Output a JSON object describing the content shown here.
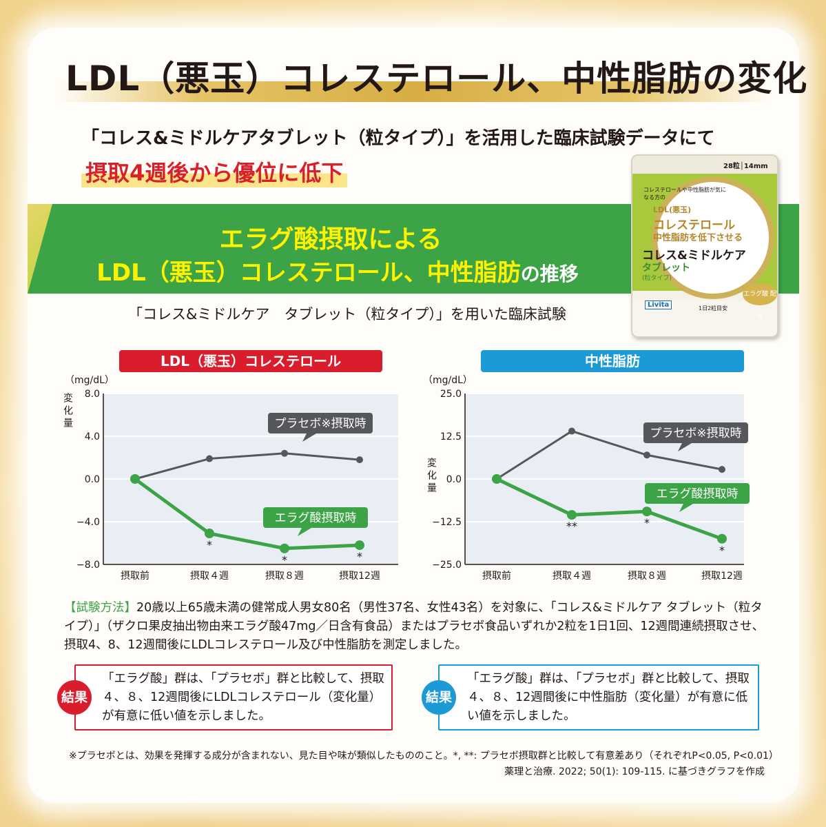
{
  "header": {
    "title": "LDL（悪玉）コレステロール、中性脂肪の変化",
    "intro": "「コレス&ミドルケアタブレット（粒タイプ）」を活用した臨床試験データにて",
    "highlight": "摂取4週後から優位に低下"
  },
  "band": {
    "line1": "エラグ酸摂取による",
    "line2": "LDL（悪玉）コレステロール、中性脂肪",
    "line2_suffix": "の推移"
  },
  "trial_caption": "「コレス&ミドルケア　タブレット（粒タイプ）」を用いた臨床試験",
  "package": {
    "count": "28粒│14mm",
    "sub": "コレステロールや中性脂肪が気になる方の",
    "l1": "LDL(悪玉)",
    "l2": "コレステロール",
    "l3": "中性脂肪を低下させる",
    "brand": "コレス&ミドルケア",
    "type": "タブレット",
    "type2": "(粒タイプ)",
    "tag": "エラグ酸 配合",
    "maker": "Livita",
    "dose": "1日2粒目安"
  },
  "chart_data": [
    {
      "type": "line",
      "title": "LDL（悪玉）コレステロール",
      "unit": "（mg/dL）",
      "ylabel": "変化量",
      "ylim": [
        -8.0,
        8.0
      ],
      "yticks": [
        "8.0",
        "4.0",
        "0.0",
        "−4.0",
        "−8.0"
      ],
      "categories": [
        "摂取前",
        "摂取４週",
        "摂取８週",
        "摂取12週"
      ],
      "series": [
        {
          "name": "プラセボ※摂取時",
          "color": "#55575a",
          "values": [
            0.0,
            1.9,
            2.4,
            1.8
          ]
        },
        {
          "name": "エラグ酸摂取時",
          "color": "#3ca447",
          "values": [
            0.0,
            -5.1,
            -6.5,
            -6.2
          ],
          "marks": [
            "",
            "*",
            "*",
            "*"
          ]
        }
      ]
    },
    {
      "type": "line",
      "title": "中性脂肪",
      "unit": "（mg/dL）",
      "ylabel": "変化量",
      "ylim": [
        -25.0,
        25.0
      ],
      "yticks": [
        "25.0",
        "12.5",
        "0.0",
        "−12.5",
        "−25.0"
      ],
      "categories": [
        "摂取前",
        "摂取４週",
        "摂取８週",
        "摂取12週"
      ],
      "series": [
        {
          "name": "プラセボ※摂取時",
          "color": "#55575a",
          "values": [
            0.0,
            14.0,
            7.0,
            2.8
          ]
        },
        {
          "name": "エラグ酸摂取時",
          "color": "#3ca447",
          "values": [
            0.0,
            -10.5,
            -9.5,
            -17.5
          ],
          "marks": [
            "",
            "**",
            "*",
            "*"
          ]
        }
      ]
    }
  ],
  "method": {
    "label": "【試験方法】",
    "text": "20歳以上65歳未満の健常成人男女80名（男性37名、女性43名）を対象に、「コレス&ミドルケア タブレット（粒タイプ）」（ザクロ果皮抽出物由来エラグ酸47mg／日含有食品）またはプラセボ食品いずれか2粒を1日1回、12週間連続摂取させ、摂取4、8、12週間後にLDLコレステロール及び中性脂肪を測定しました。"
  },
  "results": {
    "label": "結果",
    "ldl": "「エラグ酸」群は、「プラセボ」群と比較して、摂取４、８、12週間後にLDLコレステロール（変化量）が有意に低い値を示しました。",
    "tg": "「エラグ酸」群は、「プラセボ」群と比較して、摂取４、８、12週間後に中性脂肪（変化量）が有意に低い値を示しました。"
  },
  "footnote1": "※プラセボとは、効果を発揮する成分が含まれない、見た目や味が類似したもののこと。*, **: プラセボ摂取群と比較して有意差あり（それぞれP<0.05, P<0.01）",
  "footnote2": "薬理と治療. 2022; 50(1): 109-115. に基づきグラフを作成"
}
